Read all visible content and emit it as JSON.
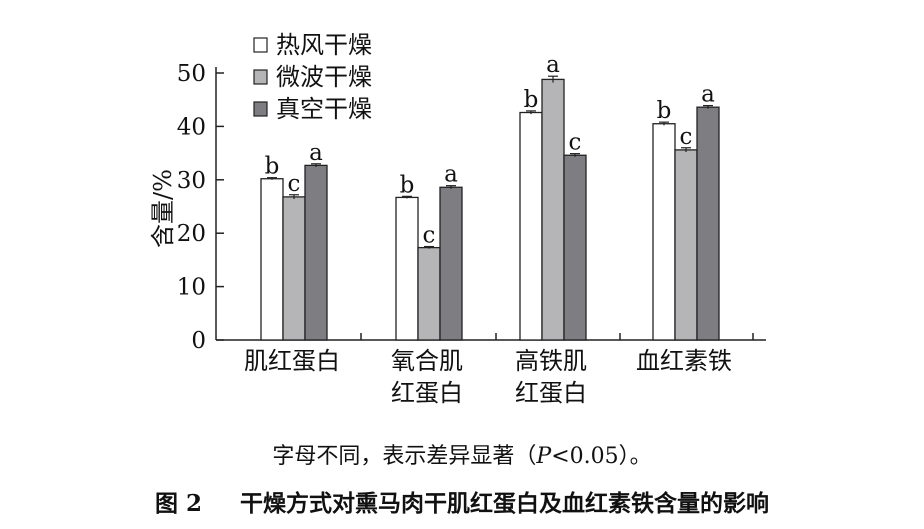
{
  "chart_data": {
    "type": "bar",
    "ylabel": "含量/%",
    "ylim": [
      0,
      50
    ],
    "yticks": [
      0,
      10,
      20,
      30,
      40,
      50
    ],
    "categories": [
      [
        "肌红蛋白"
      ],
      [
        "氧合肌",
        "红蛋白"
      ],
      [
        "高铁肌",
        "红蛋白"
      ],
      [
        "血红素铁"
      ]
    ],
    "series": [
      {
        "name": "热风干燥",
        "color": "#ffffff",
        "values": [
          30.2,
          26.7,
          42.6,
          40.5
        ],
        "errors": [
          0.2,
          0.2,
          0.3,
          0.3
        ],
        "letters": [
          "b",
          "b",
          "b",
          "b"
        ]
      },
      {
        "name": "微波干燥",
        "color": "#b5b5b8",
        "values": [
          26.8,
          17.3,
          48.8,
          35.6
        ],
        "errors": [
          0.4,
          0.2,
          0.6,
          0.4
        ],
        "letters": [
          "c",
          "c",
          "a",
          "c"
        ]
      },
      {
        "name": "真空干燥",
        "color": "#7e7e82",
        "values": [
          32.7,
          28.6,
          34.6,
          43.6
        ],
        "errors": [
          0.3,
          0.3,
          0.3,
          0.3
        ],
        "letters": [
          "a",
          "a",
          "c",
          "a"
        ]
      }
    ],
    "legend_position": "top-left",
    "grid": false
  },
  "note": {
    "prefix": "字母不同，表示差异显著（",
    "p_symbol": "P",
    "suffix": "<0.05）。"
  },
  "caption": {
    "figure_number": "图 2",
    "title": "干燥方式对熏马肉干肌红蛋白及血红素铁含量的影响"
  }
}
